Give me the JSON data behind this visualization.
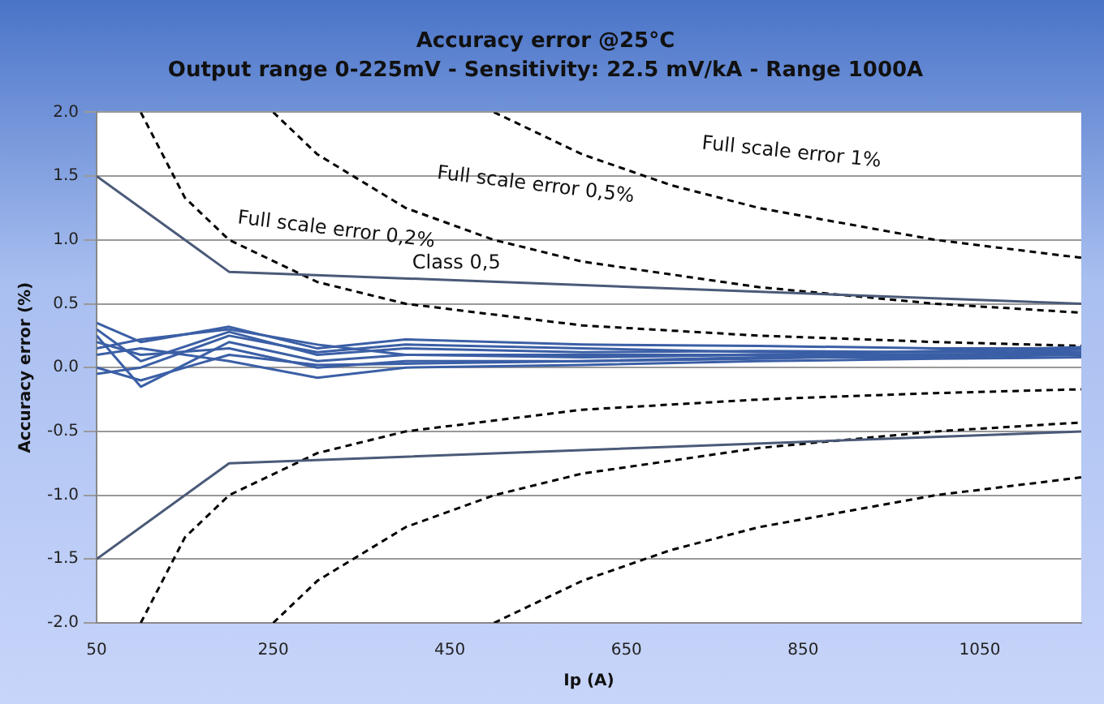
{
  "chart_data": {
    "type": "line",
    "title": "Accuracy error @25°C",
    "subtitle": "Output range 0-225mV - Sensitivity: 22.5 mV/kA - Range 1000A",
    "xlabel": "Ip (A)",
    "ylabel": "Accuracy error (%)",
    "xlim": [
      50,
      1165
    ],
    "xticks": [
      50,
      250,
      450,
      650,
      850,
      1050
    ],
    "ylim": [
      -2,
      2
    ],
    "yticks": [
      {
        "value": -2,
        "label": "-2.0"
      },
      {
        "value": -1.5,
        "label": "-1.5"
      },
      {
        "value": -1,
        "label": "-1.0"
      },
      {
        "value": -0.5,
        "label": "-0.5"
      },
      {
        "value": 0,
        "label": "0.0"
      },
      {
        "value": 0.5,
        "label": "0.5"
      },
      {
        "value": 1,
        "label": "1.0"
      },
      {
        "value": 1.5,
        "label": "1.5"
      },
      {
        "value": 2,
        "label": "2.0"
      }
    ],
    "grid": "y",
    "legend": false,
    "marker": "none",
    "line_style": "solid",
    "x": [
      50,
      100,
      200,
      300,
      400,
      600,
      800,
      1000,
      1165
    ],
    "series": [
      {
        "color": "#3b5fa6",
        "values": [
          0.35,
          0.2,
          0.32,
          0.15,
          0.22,
          0.18,
          0.17,
          0.15,
          0.15
        ]
      },
      {
        "color": "#3b5fa6",
        "values": [
          0.3,
          0.05,
          0.28,
          0.1,
          0.15,
          0.12,
          0.13,
          0.12,
          0.12
        ]
      },
      {
        "color": "#3b5fa6",
        "values": [
          0.25,
          -0.15,
          0.2,
          0.05,
          0.1,
          0.1,
          0.1,
          0.1,
          0.1
        ]
      },
      {
        "color": "#3b5fa6",
        "values": [
          0.2,
          0.1,
          0.15,
          0.0,
          0.05,
          0.05,
          0.08,
          0.08,
          0.1
        ]
      },
      {
        "color": "#3b5fa6",
        "values": [
          0.1,
          0.15,
          0.05,
          -0.08,
          0.0,
          0.02,
          0.05,
          0.07,
          0.08
        ]
      },
      {
        "color": "#3b5fa6",
        "values": [
          0.0,
          -0.1,
          0.1,
          0.02,
          0.03,
          0.05,
          0.07,
          0.1,
          0.12
        ]
      },
      {
        "color": "#3b5fa6",
        "values": [
          -0.05,
          0.0,
          0.25,
          0.12,
          0.18,
          0.15,
          0.12,
          0.12,
          0.14
        ]
      },
      {
        "color": "#3b5fa6",
        "values": [
          0.15,
          0.22,
          0.3,
          0.18,
          0.1,
          0.08,
          0.1,
          0.13,
          0.16
        ]
      },
      {
        "name": "Class 0,5",
        "color": "#4a5a78",
        "x": [
          50,
          200,
          1165
        ],
        "values": [
          1.5,
          0.75,
          0.5
        ]
      },
      {
        "color": "#4a5a78",
        "x": [
          50,
          200,
          1165
        ],
        "values": [
          -1.5,
          -0.75,
          -0.5
        ]
      },
      {
        "name": "Full scale error 0,2%",
        "color": "#000000",
        "line_style": "dashed",
        "x": [
          100,
          150,
          200,
          300,
          400,
          600,
          800,
          1000,
          1165
        ],
        "values": [
          2,
          1.33,
          1,
          0.67,
          0.5,
          0.33,
          0.25,
          0.2,
          0.17
        ]
      },
      {
        "color": "#000000",
        "line_style": "dashed",
        "x": [
          100,
          150,
          200,
          300,
          400,
          600,
          800,
          1000,
          1165
        ],
        "values": [
          -2,
          -1.33,
          -1,
          -0.67,
          -0.5,
          -0.33,
          -0.25,
          -0.2,
          -0.17
        ]
      },
      {
        "name": "Full scale error 0,5%",
        "color": "#000000",
        "line_style": "dashed",
        "x": [
          250,
          300,
          400,
          500,
          600,
          800,
          1000,
          1165
        ],
        "values": [
          2,
          1.67,
          1.25,
          1,
          0.83,
          0.63,
          0.5,
          0.43
        ]
      },
      {
        "color": "#000000",
        "line_style": "dashed",
        "x": [
          250,
          300,
          400,
          500,
          600,
          800,
          1000,
          1165
        ],
        "values": [
          -2,
          -1.67,
          -1.25,
          -1,
          -0.83,
          -0.63,
          -0.5,
          -0.43
        ]
      },
      {
        "name": "Full scale error 1%",
        "color": "#000000",
        "line_style": "dashed",
        "x": [
          500,
          600,
          700,
          800,
          1000,
          1165
        ],
        "values": [
          2,
          1.67,
          1.43,
          1.25,
          1,
          0.86
        ]
      },
      {
        "color": "#000000",
        "line_style": "dashed",
        "x": [
          500,
          600,
          700,
          800,
          1000,
          1165
        ],
        "values": [
          -2,
          -1.67,
          -1.43,
          -1.25,
          -1,
          -0.86
        ]
      }
    ]
  }
}
